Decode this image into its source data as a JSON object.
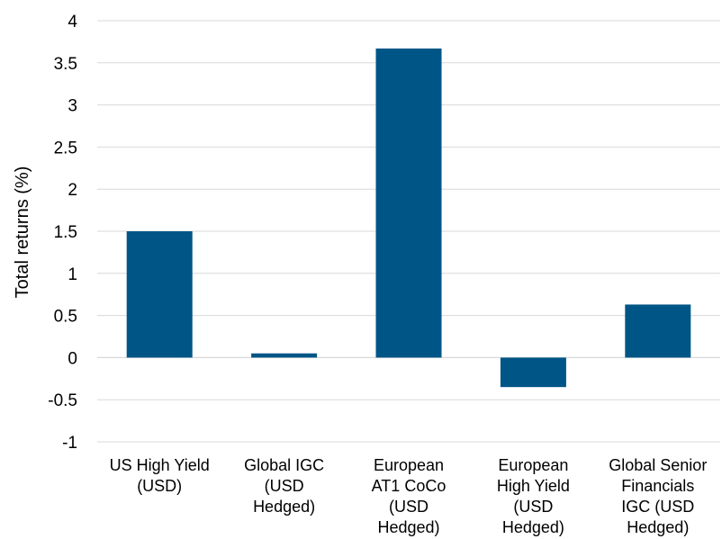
{
  "chart_data": {
    "type": "bar",
    "categories": [
      [
        "US High Yield",
        "(USD)"
      ],
      [
        "Global IGC",
        "(USD",
        "Hedged)"
      ],
      [
        "European",
        "AT1 CoCo",
        "(USD",
        "Hedged)"
      ],
      [
        "European",
        "High Yield",
        "(USD",
        "Hedged)"
      ],
      [
        "Global Senior",
        "Financials",
        "IGC (USD",
        "Hedged)"
      ]
    ],
    "values": [
      1.5,
      0.05,
      3.67,
      -0.35,
      0.63
    ],
    "ylabel": "Total returns (%)",
    "ylim": [
      -1,
      4
    ],
    "yticks": [
      "-1",
      "-0.5",
      "0",
      "0.5",
      "1",
      "1.5",
      "2",
      "2.5",
      "3",
      "3.5",
      "4"
    ],
    "ytick_values": [
      -1,
      -0.5,
      0,
      0.5,
      1,
      1.5,
      2,
      2.5,
      3,
      3.5,
      4
    ],
    "grid": true,
    "bar_color": "#005587",
    "grid_color": "#d9d9d9"
  }
}
